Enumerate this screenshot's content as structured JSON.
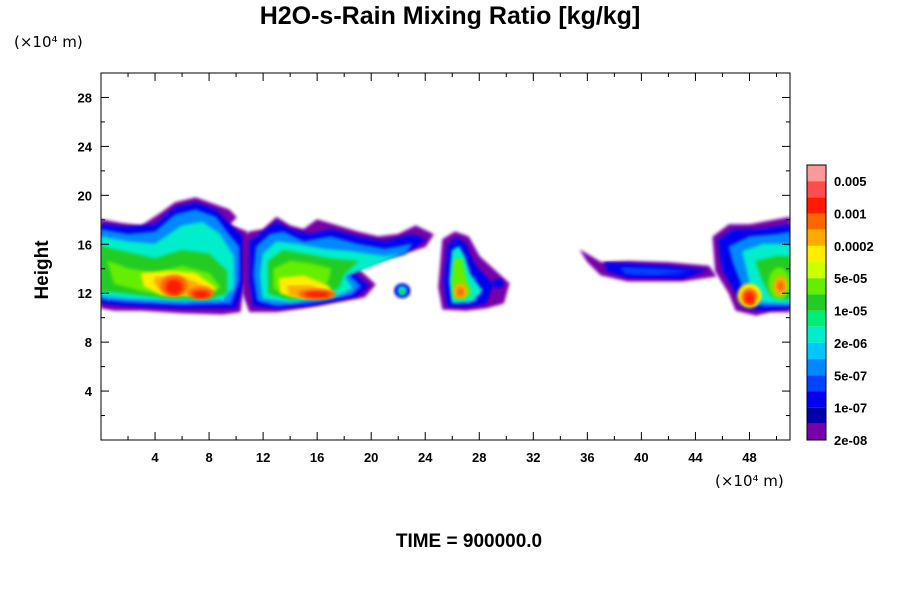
{
  "chart_data": {
    "type": "heatmap",
    "title": "H2O-s-Rain Mixing Ratio [kg/kg]",
    "xlabel": "",
    "ylabel": "Height",
    "x_unit": "(×10⁴ m)",
    "y_unit": "(×10⁴ m)",
    "xlim": [
      0,
      51
    ],
    "ylim": [
      0,
      30
    ],
    "x_ticks": [
      4,
      8,
      12,
      16,
      20,
      24,
      28,
      32,
      36,
      40,
      44,
      48
    ],
    "y_ticks": [
      4,
      8,
      12,
      16,
      20,
      24,
      28
    ],
    "footer": "TIME = 900000.0",
    "colorbar": {
      "labels": [
        "0.005",
        "0.001",
        "0.0002",
        "5e-05",
        "1e-05",
        "2e-06",
        "5e-07",
        "1e-07",
        "2e-08"
      ],
      "colors": [
        "#ff9999",
        "#ff4d4d",
        "#ff1a00",
        "#ff6600",
        "#ffaa00",
        "#ffee00",
        "#ccff00",
        "#66ee00",
        "#22cc22",
        "#00ee77",
        "#00eecc",
        "#00c8ff",
        "#0088ff",
        "#0044ff",
        "#0000ee",
        "#0000aa",
        "#7700aa"
      ]
    },
    "features": [
      {
        "x": [
          0,
          11
        ],
        "y": [
          10.5,
          18
        ],
        "level": "1e-06 to 0.001",
        "peak_at": [
          6,
          12
        ]
      },
      {
        "x": [
          11,
          24
        ],
        "y": [
          10.5,
          17
        ],
        "level": "1e-06 to 0.001",
        "peak_at": [
          16,
          11.5
        ]
      },
      {
        "x": [
          25,
          30
        ],
        "y": [
          10.5,
          16.5
        ],
        "level": "1e-06 to 0.0002",
        "peak_at": [
          27,
          12
        ]
      },
      {
        "x": [
          36,
          46
        ],
        "y": [
          13,
          15
        ],
        "level": "2e-08 to 1e-07",
        "peak_at": [
          40,
          14
        ]
      },
      {
        "x": [
          45,
          51
        ],
        "y": [
          10.5,
          17.5
        ],
        "level": "1e-06 to 0.001",
        "peak_at": [
          48,
          11.5
        ]
      }
    ]
  }
}
